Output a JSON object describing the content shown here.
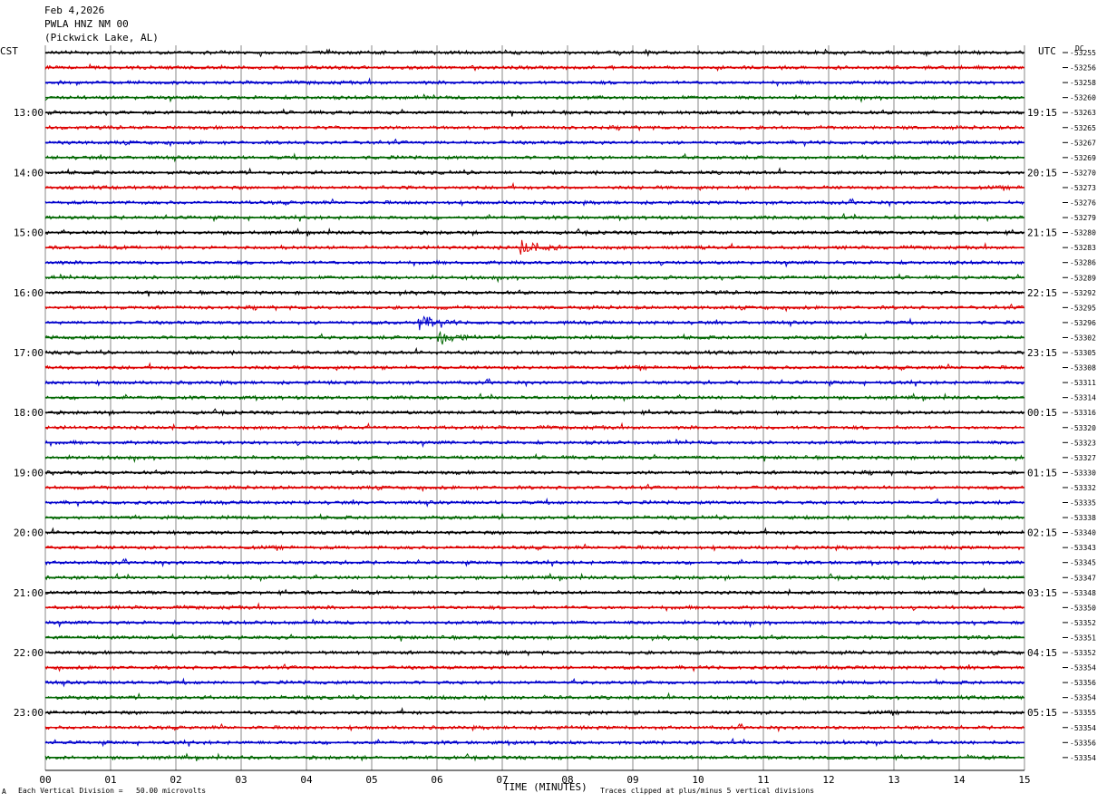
{
  "header": {
    "date": "Feb 4,2026",
    "station": "PWLA HNZ NM 00",
    "location": "(Pickwick Lake, AL)"
  },
  "left_tz": "CST",
  "right_tz": "UTC",
  "dc_label": "DC",
  "footer": {
    "scale_note": "Each Vertical Division =   50.00 microvolts",
    "xlabel": "TIME (MINUTES)",
    "clip_note": "Traces clipped at plus/minus 5 vertical divisions",
    "corner_mark": "A"
  },
  "colors": {
    "trace_cycle": [
      "#000000",
      "#dd0000",
      "#0000cc",
      "#006600"
    ],
    "grid": "#888888"
  },
  "chart_data": {
    "type": "line",
    "title": "",
    "xlabel": "TIME (MINUTES)",
    "ylabel": "",
    "xlim": [
      0,
      15
    ],
    "x_ticks": [
      "00",
      "01",
      "02",
      "03",
      "04",
      "05",
      "06",
      "07",
      "08",
      "09",
      "10",
      "11",
      "12",
      "13",
      "14",
      "15"
    ],
    "rows_per_hour": 4,
    "left_time_labels": [
      "13:00",
      "14:00",
      "15:00",
      "16:00",
      "17:00",
      "18:00",
      "19:00",
      "20:00",
      "21:00",
      "22:00",
      "23:00"
    ],
    "right_time_labels": [
      "19:15",
      "20:15",
      "21:15",
      "22:15",
      "23:15",
      "00:15",
      "01:15",
      "02:15",
      "03:15",
      "04:15",
      "05:15"
    ],
    "right_values": [
      "-53255",
      "-53256",
      "-53258",
      "-53260",
      "-53263",
      "-53265",
      "-53267",
      "-53269",
      "-53270",
      "-53273",
      "-53276",
      "-53279",
      "-53280",
      "-53283",
      "-53286",
      "-53289",
      "-53292",
      "-53295",
      "-53296",
      "-53302",
      "-53305",
      "-53308",
      "-53311",
      "-53314",
      "-53316",
      "-53320",
      "-53323",
      "-53327",
      "-53330",
      "-53332",
      "-53335",
      "-53338",
      "-53340",
      "-53343",
      "-53345",
      "-53347",
      "-53348",
      "-53350",
      "-53352",
      "-53351",
      "-53352",
      "-53354",
      "-53356",
      "-53354",
      "-53355",
      "-53354",
      "-53356",
      "-53354"
    ],
    "events": [
      {
        "row": 13,
        "minute": 7.3,
        "label": ""
      },
      {
        "row": 19,
        "minute": 6.05,
        "label": ""
      },
      {
        "row": 18,
        "minute": 5.75,
        "label": ""
      }
    ]
  }
}
